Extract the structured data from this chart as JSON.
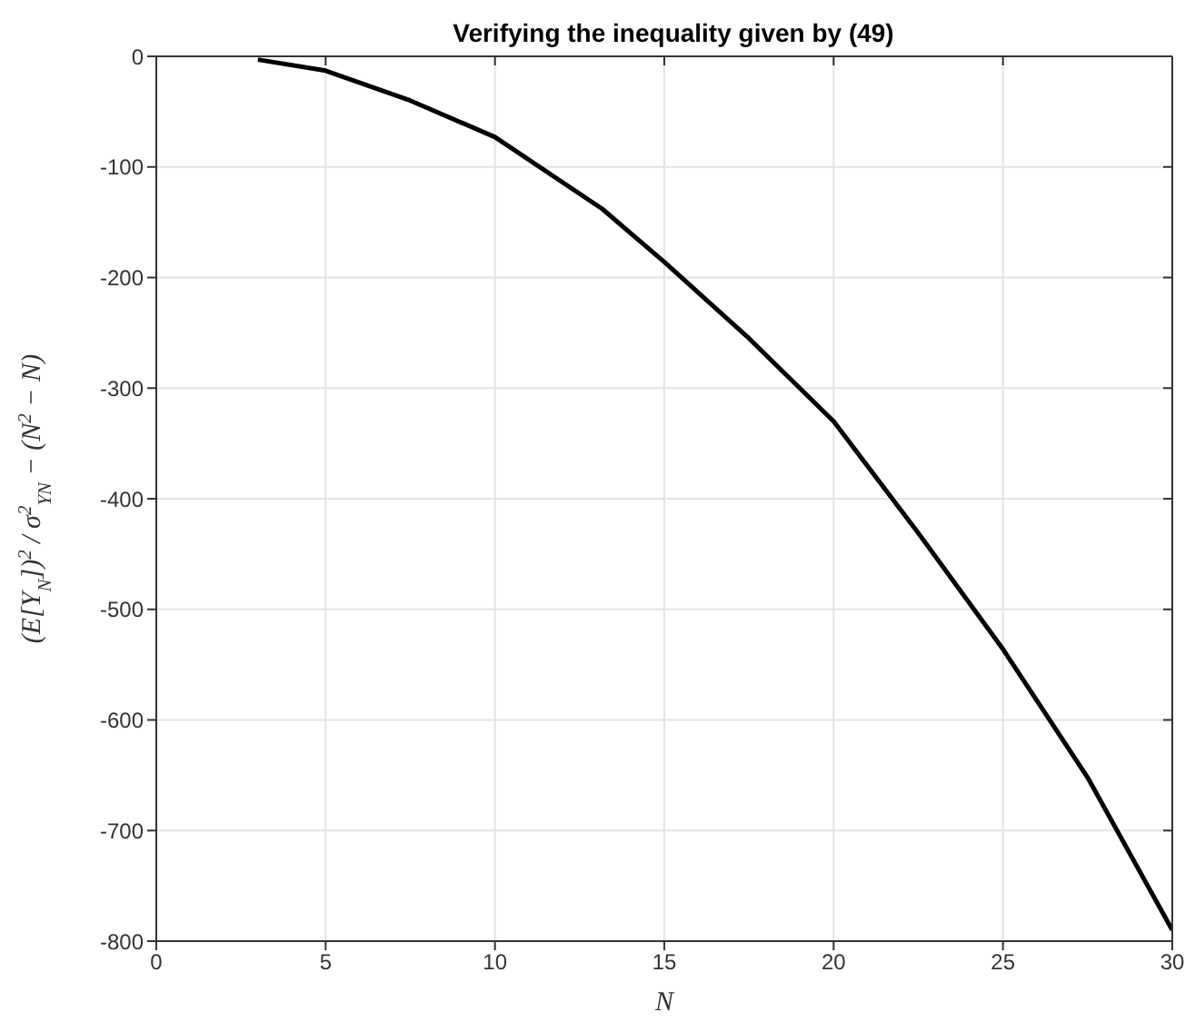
{
  "chart_data": {
    "type": "line",
    "title": "Verifying the inequality given by (49)",
    "xlabel": "N",
    "ylabel": "(E[Y$_{N}$])$^{2}$ / σ$^{2}$$_{YN}$ − (N$^{2}$ − N)",
    "series": [
      {
        "color": "#000000",
        "x": [
          3,
          5,
          7.5,
          10,
          13.17,
          15,
          17.5,
          20,
          22.5,
          25,
          27.5,
          30
        ],
        "values": [
          -3,
          -13,
          -40,
          -73,
          -138,
          -186,
          -255,
          -330,
          -431,
          -536,
          -652,
          -790
        ]
      }
    ],
    "xlim": [
      0,
      30
    ],
    "xticks": [
      0,
      5,
      10,
      15,
      20,
      25,
      30
    ],
    "ylim": [
      -800,
      0
    ],
    "yticks": [
      -800,
      -700,
      -600,
      -500,
      -400,
      -300,
      -200,
      -100,
      0
    ],
    "grid": true,
    "marker": "none",
    "line_style": "solid"
  }
}
